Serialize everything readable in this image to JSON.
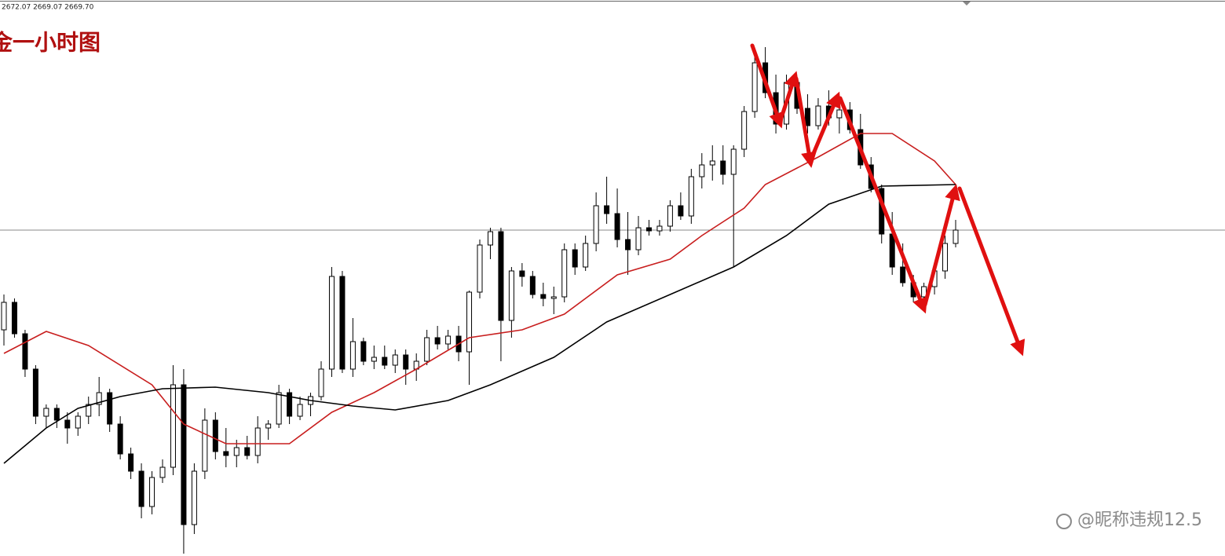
{
  "chart_data": {
    "type": "candlestick",
    "header": "2672.07 2669.07 2669.70",
    "title": "金一小时图",
    "watermark": "@昵称违规12.5",
    "ylim": [
      2628.2,
      2699
    ],
    "price_line": 2669.7,
    "up_color": "#ffffff",
    "down_color": "#000000",
    "open": [
      2657.0,
      2660.5,
      2656.5,
      2652.0,
      2646.0,
      2647.0,
      2645.5,
      2644.5,
      2646.0,
      2647.5,
      2649.0,
      2645.0,
      2641.2,
      2639.0,
      2634.5,
      2638.2,
      2639.5,
      2650.0,
      2632.2,
      2639.0,
      2645.5,
      2641.5,
      2641.0,
      2642.0,
      2641.0,
      2644.5,
      2645.0,
      2649.0,
      2646.0,
      2647.5,
      2648.5,
      2652.0,
      2663.8,
      2652.0,
      2655.5,
      2653.0,
      2653.5,
      2652.5,
      2653.8,
      2652.0,
      2653.0,
      2656.0,
      2655.2,
      2656.2,
      2654.2,
      2661.8,
      2667.8,
      2669.5,
      2658.2,
      2664.5,
      2663.8,
      2661.5,
      2661.0,
      2661.2,
      2667.2,
      2665.0,
      2668.0,
      2672.8,
      2671.8,
      2668.5,
      2667.2,
      2670.0,
      2669.6,
      2670.2,
      2672.8,
      2671.5,
      2676.5,
      2678.0,
      2678.5,
      2676.8,
      2680.0,
      2684.8,
      2691.0,
      2687.2,
      2683.2,
      2688.5,
      2685.2,
      2683.0,
      2685.5,
      2684.0,
      2685.0,
      2682.5,
      2678.0,
      2675.0,
      2669.2,
      2665.0,
      2663.0,
      2661.2,
      2662.5,
      2664.5,
      2668.0
    ],
    "high": [
      2661.5,
      2661.0,
      2657.0,
      2652.5,
      2647.5,
      2647.5,
      2646.5,
      2646.5,
      2648.5,
      2651.0,
      2649.5,
      2646.0,
      2642.0,
      2640.0,
      2639.0,
      2640.5,
      2652.5,
      2652.0,
      2640.0,
      2647.0,
      2646.5,
      2644.5,
      2643.0,
      2643.5,
      2646.0,
      2645.5,
      2650.0,
      2649.5,
      2648.5,
      2649.0,
      2653.0,
      2665.0,
      2664.5,
      2658.5,
      2656.0,
      2655.0,
      2655.0,
      2654.5,
      2654.5,
      2654.0,
      2657.0,
      2657.5,
      2657.0,
      2657.5,
      2662.0,
      2668.5,
      2670.0,
      2670.0,
      2665.0,
      2665.5,
      2664.5,
      2663.0,
      2662.5,
      2668.0,
      2668.0,
      2669.0,
      2674.5,
      2676.5,
      2675.0,
      2672.0,
      2671.5,
      2671.0,
      2671.0,
      2673.5,
      2674.5,
      2677.5,
      2679.5,
      2680.5,
      2680.5,
      2680.5,
      2685.5,
      2692.5,
      2693.0,
      2689.5,
      2689.5,
      2689.0,
      2687.0,
      2686.5,
      2687.5,
      2686.5,
      2686.0,
      2684.5,
      2679.0,
      2675.5,
      2672.0,
      2668.0,
      2664.0,
      2663.0,
      2665.0,
      2669.0,
      2671.0
    ],
    "low": [
      2655.0,
      2656.0,
      2651.0,
      2645.0,
      2644.5,
      2644.5,
      2642.5,
      2643.5,
      2645.0,
      2646.0,
      2644.0,
      2640.5,
      2638.0,
      2633.0,
      2633.5,
      2637.5,
      2638.5,
      2628.5,
      2631.0,
      2638.0,
      2640.5,
      2639.5,
      2639.5,
      2640.5,
      2640.0,
      2643.0,
      2644.5,
      2645.0,
      2645.5,
      2646.0,
      2648.0,
      2651.0,
      2651.5,
      2651.0,
      2652.5,
      2652.0,
      2652.0,
      2651.5,
      2650.0,
      2650.5,
      2652.5,
      2654.5,
      2654.5,
      2653.0,
      2650.0,
      2661.0,
      2666.0,
      2653.0,
      2656.0,
      2662.5,
      2661.0,
      2660.0,
      2659.0,
      2660.5,
      2664.0,
      2664.5,
      2667.0,
      2670.5,
      2667.5,
      2664.0,
      2666.5,
      2669.0,
      2669.0,
      2669.5,
      2671.0,
      2670.5,
      2675.0,
      2676.0,
      2675.5,
      2665.0,
      2679.0,
      2684.0,
      2686.5,
      2682.0,
      2682.5,
      2684.5,
      2682.0,
      2682.5,
      2683.0,
      2682.0,
      2682.0,
      2677.5,
      2674.5,
      2668.0,
      2664.0,
      2662.5,
      2660.5,
      2660.0,
      2661.5,
      2663.5,
      2667.5
    ],
    "close": [
      2660.5,
      2656.5,
      2652.0,
      2646.0,
      2647.0,
      2645.5,
      2644.5,
      2646.0,
      2647.5,
      2649.0,
      2645.0,
      2641.2,
      2639.0,
      2634.5,
      2638.2,
      2639.5,
      2650.0,
      2632.2,
      2639.0,
      2645.5,
      2641.5,
      2641.0,
      2642.0,
      2641.0,
      2644.5,
      2645.0,
      2649.0,
      2646.0,
      2647.5,
      2648.5,
      2652.0,
      2663.8,
      2652.0,
      2655.5,
      2653.0,
      2653.5,
      2652.5,
      2653.8,
      2652.0,
      2653.0,
      2656.0,
      2655.2,
      2656.2,
      2654.2,
      2661.8,
      2667.8,
      2669.5,
      2658.2,
      2664.5,
      2663.8,
      2661.5,
      2661.0,
      2661.2,
      2667.2,
      2665.0,
      2668.0,
      2672.8,
      2671.8,
      2668.5,
      2667.2,
      2670.0,
      2669.6,
      2670.2,
      2672.8,
      2671.5,
      2676.5,
      2678.0,
      2678.5,
      2676.8,
      2680.0,
      2684.8,
      2691.0,
      2687.2,
      2683.2,
      2688.5,
      2685.2,
      2683.0,
      2685.5,
      2684.0,
      2685.0,
      2682.5,
      2678.0,
      2675.0,
      2669.2,
      2665.0,
      2663.0,
      2661.2,
      2662.5,
      2664.5,
      2668.0,
      2669.7
    ],
    "series": [
      {
        "color": "#c81e1e",
        "x": [
          0,
          4,
          8,
          14,
          17,
          21,
          27,
          31,
          35,
          39,
          44,
          49,
          53,
          58,
          63,
          66,
          70,
          72,
          77,
          81,
          84,
          88,
          90
        ],
        "values": [
          2654.0,
          2656.8,
          2655.0,
          2650.0,
          2645.0,
          2642.5,
          2642.5,
          2646.5,
          2649.0,
          2652.0,
          2656.0,
          2657.0,
          2659.0,
          2664.0,
          2666.0,
          2669.0,
          2672.5,
          2675.5,
          2679.0,
          2682.0,
          2682.0,
          2678.5,
          2675.5
        ]
      },
      {
        "color": "#000000",
        "x": [
          0,
          4,
          7,
          11,
          15,
          20,
          25,
          29,
          33,
          37,
          42,
          46,
          52,
          57,
          63,
          69,
          74,
          78,
          83,
          90
        ],
        "values": [
          2640.0,
          2644.5,
          2647.0,
          2648.5,
          2649.5,
          2649.7,
          2649.0,
          2648.0,
          2647.3,
          2646.8,
          2648.0,
          2650.0,
          2653.5,
          2658.0,
          2661.5,
          2665.0,
          2669.0,
          2673.0,
          2675.3,
          2675.5
        ]
      }
    ]
  }
}
